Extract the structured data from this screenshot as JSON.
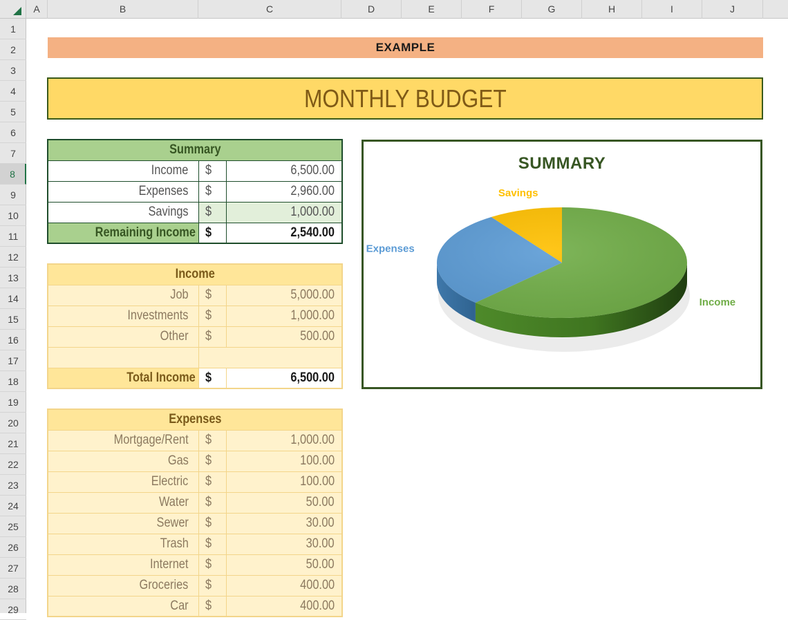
{
  "columns": [
    "A",
    "B",
    "C",
    "D",
    "E",
    "F",
    "G",
    "H",
    "I",
    "J"
  ],
  "rows": [
    "1",
    "2",
    "3",
    "4",
    "5",
    "6",
    "7",
    "8",
    "9",
    "10",
    "11",
    "12",
    "13",
    "14",
    "15",
    "16",
    "17",
    "18",
    "19",
    "20",
    "21",
    "22",
    "23",
    "24",
    "25",
    "26",
    "27",
    "28",
    "29"
  ],
  "selected_row": "8",
  "example_label": "EXAMPLE",
  "title": "MONTHLY BUDGET",
  "currency": "$",
  "summary": {
    "header": "Summary",
    "rows": [
      {
        "label": "Income",
        "amount": "6,500.00"
      },
      {
        "label": "Expenses",
        "amount": "2,960.00"
      },
      {
        "label": "Savings",
        "amount": "1,000.00"
      }
    ],
    "total": {
      "label": "Remaining Income",
      "amount": "2,540.00"
    }
  },
  "income": {
    "header": "Income",
    "rows": [
      {
        "label": "Job",
        "amount": "5,000.00"
      },
      {
        "label": "Investments",
        "amount": "1,000.00"
      },
      {
        "label": "Other",
        "amount": "500.00"
      }
    ],
    "total": {
      "label": "Total Income",
      "amount": "6,500.00"
    }
  },
  "expenses": {
    "header": "Expenses",
    "rows": [
      {
        "label": "Mortgage/Rent",
        "amount": "1,000.00"
      },
      {
        "label": "Gas",
        "amount": "100.00"
      },
      {
        "label": "Electric",
        "amount": "100.00"
      },
      {
        "label": "Water",
        "amount": "50.00"
      },
      {
        "label": "Sewer",
        "amount": "30.00"
      },
      {
        "label": "Trash",
        "amount": "30.00"
      },
      {
        "label": "Internet",
        "amount": "50.00"
      },
      {
        "label": "Groceries",
        "amount": "400.00"
      },
      {
        "label": "Car",
        "amount": "400.00"
      }
    ]
  },
  "colors": {
    "income": "#70ad47",
    "expenses": "#5b9bd5",
    "savings": "#ffc000",
    "chart_border": "#375623",
    "banner": "#f4b183",
    "title_bg": "#ffd966"
  },
  "chart_data": {
    "type": "pie",
    "title": "SUMMARY",
    "categories": [
      "Income",
      "Expenses",
      "Savings"
    ],
    "values": [
      6500,
      2960,
      1000
    ],
    "colors": [
      "#70ad47",
      "#5b9bd5",
      "#ffc000"
    ],
    "style": "3d"
  }
}
